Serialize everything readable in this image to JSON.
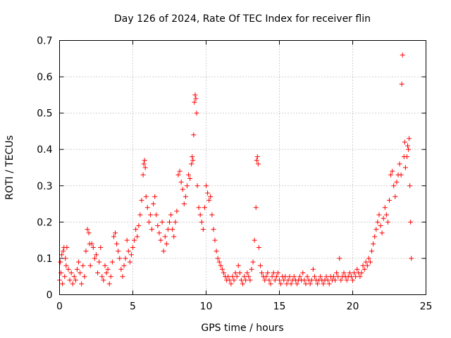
{
  "chart_data": {
    "type": "scatter",
    "title": "Day 126 of 2024, Rate Of TEC Index for receiver flin",
    "xlabel": "GPS time / hours",
    "ylabel": "ROTI / TECUs",
    "xlim": [
      0,
      25
    ],
    "ylim": [
      0,
      0.7
    ],
    "xticks": [
      "0",
      "5",
      "10",
      "15",
      "20",
      "25"
    ],
    "yticks": [
      "0",
      "0.1",
      "0.2",
      "0.3",
      "0.4",
      "0.5",
      "0.6",
      "0.7"
    ],
    "grid": true,
    "marker": "+",
    "marker_color": "#ff0000",
    "series": [
      {
        "points": [
          [
            0.0,
            0.04
          ],
          [
            0.05,
            0.09
          ],
          [
            0.1,
            0.06
          ],
          [
            0.15,
            0.11
          ],
          [
            0.2,
            0.03
          ],
          [
            0.25,
            0.12
          ],
          [
            0.3,
            0.13
          ],
          [
            0.35,
            0.05
          ],
          [
            0.4,
            0.1
          ],
          [
            0.45,
            0.08
          ],
          [
            0.5,
            0.13
          ],
          [
            0.6,
            0.07
          ],
          [
            0.7,
            0.04
          ],
          [
            0.8,
            0.06
          ],
          [
            0.9,
            0.03
          ],
          [
            1.0,
            0.05
          ],
          [
            1.1,
            0.04
          ],
          [
            1.2,
            0.07
          ],
          [
            1.3,
            0.09
          ],
          [
            1.4,
            0.06
          ],
          [
            1.5,
            0.03
          ],
          [
            1.6,
            0.08
          ],
          [
            1.7,
            0.05
          ],
          [
            1.8,
            0.12
          ],
          [
            1.9,
            0.18
          ],
          [
            2.0,
            0.17
          ],
          [
            2.05,
            0.14
          ],
          [
            2.1,
            0.08
          ],
          [
            2.2,
            0.14
          ],
          [
            2.3,
            0.13
          ],
          [
            2.4,
            0.1
          ],
          [
            2.5,
            0.11
          ],
          [
            2.6,
            0.06
          ],
          [
            2.7,
            0.09
          ],
          [
            2.8,
            0.13
          ],
          [
            2.9,
            0.05
          ],
          [
            3.0,
            0.04
          ],
          [
            3.1,
            0.08
          ],
          [
            3.2,
            0.06
          ],
          [
            3.3,
            0.07
          ],
          [
            3.4,
            0.03
          ],
          [
            3.5,
            0.05
          ],
          [
            3.6,
            0.09
          ],
          [
            3.7,
            0.16
          ],
          [
            3.8,
            0.17
          ],
          [
            3.9,
            0.14
          ],
          [
            4.0,
            0.12
          ],
          [
            4.1,
            0.1
          ],
          [
            4.2,
            0.07
          ],
          [
            4.3,
            0.05
          ],
          [
            4.4,
            0.08
          ],
          [
            4.5,
            0.1
          ],
          [
            4.6,
            0.15
          ],
          [
            4.7,
            0.12
          ],
          [
            4.8,
            0.09
          ],
          [
            4.9,
            0.11
          ],
          [
            5.0,
            0.13
          ],
          [
            5.1,
            0.15
          ],
          [
            5.2,
            0.18
          ],
          [
            5.3,
            0.16
          ],
          [
            5.4,
            0.19
          ],
          [
            5.5,
            0.22
          ],
          [
            5.6,
            0.26
          ],
          [
            5.7,
            0.33
          ],
          [
            5.75,
            0.36
          ],
          [
            5.8,
            0.37
          ],
          [
            5.85,
            0.35
          ],
          [
            5.9,
            0.27
          ],
          [
            6.0,
            0.24
          ],
          [
            6.1,
            0.2
          ],
          [
            6.2,
            0.22
          ],
          [
            6.3,
            0.18
          ],
          [
            6.4,
            0.25
          ],
          [
            6.5,
            0.27
          ],
          [
            6.6,
            0.22
          ],
          [
            6.7,
            0.19
          ],
          [
            6.8,
            0.17
          ],
          [
            6.9,
            0.15
          ],
          [
            7.0,
            0.2
          ],
          [
            7.1,
            0.12
          ],
          [
            7.2,
            0.16
          ],
          [
            7.3,
            0.14
          ],
          [
            7.4,
            0.18
          ],
          [
            7.5,
            0.2
          ],
          [
            7.6,
            0.22
          ],
          [
            7.7,
            0.18
          ],
          [
            7.8,
            0.16
          ],
          [
            7.9,
            0.2
          ],
          [
            8.0,
            0.23
          ],
          [
            8.1,
            0.33
          ],
          [
            8.2,
            0.34
          ],
          [
            8.3,
            0.31
          ],
          [
            8.4,
            0.29
          ],
          [
            8.5,
            0.25
          ],
          [
            8.6,
            0.27
          ],
          [
            8.7,
            0.3
          ],
          [
            8.8,
            0.33
          ],
          [
            8.9,
            0.32
          ],
          [
            9.0,
            0.36
          ],
          [
            9.05,
            0.38
          ],
          [
            9.1,
            0.37
          ],
          [
            9.15,
            0.44
          ],
          [
            9.2,
            0.53
          ],
          [
            9.25,
            0.55
          ],
          [
            9.3,
            0.54
          ],
          [
            9.35,
            0.5
          ],
          [
            9.4,
            0.3
          ],
          [
            9.5,
            0.24
          ],
          [
            9.6,
            0.22
          ],
          [
            9.7,
            0.2
          ],
          [
            9.8,
            0.18
          ],
          [
            9.9,
            0.24
          ],
          [
            10.0,
            0.3
          ],
          [
            10.1,
            0.28
          ],
          [
            10.2,
            0.26
          ],
          [
            10.3,
            0.27
          ],
          [
            10.4,
            0.22
          ],
          [
            10.5,
            0.18
          ],
          [
            10.6,
            0.15
          ],
          [
            10.7,
            0.12
          ],
          [
            10.8,
            0.1
          ],
          [
            10.9,
            0.09
          ],
          [
            11.0,
            0.08
          ],
          [
            11.1,
            0.07
          ],
          [
            11.2,
            0.06
          ],
          [
            11.3,
            0.05
          ],
          [
            11.4,
            0.04
          ],
          [
            11.5,
            0.05
          ],
          [
            11.6,
            0.04
          ],
          [
            11.7,
            0.03
          ],
          [
            11.8,
            0.05
          ],
          [
            11.9,
            0.04
          ],
          [
            12.0,
            0.06
          ],
          [
            12.1,
            0.05
          ],
          [
            12.2,
            0.08
          ],
          [
            12.3,
            0.06
          ],
          [
            12.4,
            0.04
          ],
          [
            12.5,
            0.03
          ],
          [
            12.6,
            0.05
          ],
          [
            12.7,
            0.04
          ],
          [
            12.8,
            0.06
          ],
          [
            12.9,
            0.05
          ],
          [
            13.0,
            0.04
          ],
          [
            13.1,
            0.07
          ],
          [
            13.2,
            0.09
          ],
          [
            13.3,
            0.15
          ],
          [
            13.4,
            0.24
          ],
          [
            13.45,
            0.37
          ],
          [
            13.5,
            0.38
          ],
          [
            13.55,
            0.36
          ],
          [
            13.6,
            0.13
          ],
          [
            13.7,
            0.08
          ],
          [
            13.8,
            0.06
          ],
          [
            13.9,
            0.05
          ],
          [
            14.0,
            0.04
          ],
          [
            14.1,
            0.05
          ],
          [
            14.2,
            0.06
          ],
          [
            14.3,
            0.04
          ],
          [
            14.4,
            0.03
          ],
          [
            14.5,
            0.05
          ],
          [
            14.6,
            0.06
          ],
          [
            14.7,
            0.04
          ],
          [
            14.8,
            0.05
          ],
          [
            14.9,
            0.06
          ],
          [
            15.0,
            0.04
          ],
          [
            15.1,
            0.03
          ],
          [
            15.2,
            0.05
          ],
          [
            15.3,
            0.04
          ],
          [
            15.4,
            0.05
          ],
          [
            15.5,
            0.03
          ],
          [
            15.6,
            0.04
          ],
          [
            15.7,
            0.05
          ],
          [
            15.8,
            0.03
          ],
          [
            15.9,
            0.04
          ],
          [
            16.0,
            0.05
          ],
          [
            16.1,
            0.04
          ],
          [
            16.2,
            0.03
          ],
          [
            16.3,
            0.04
          ],
          [
            16.4,
            0.05
          ],
          [
            16.5,
            0.04
          ],
          [
            16.6,
            0.06
          ],
          [
            16.7,
            0.04
          ],
          [
            16.8,
            0.03
          ],
          [
            16.9,
            0.05
          ],
          [
            17.0,
            0.04
          ],
          [
            17.1,
            0.03
          ],
          [
            17.2,
            0.04
          ],
          [
            17.3,
            0.07
          ],
          [
            17.4,
            0.05
          ],
          [
            17.5,
            0.04
          ],
          [
            17.6,
            0.03
          ],
          [
            17.7,
            0.04
          ],
          [
            17.8,
            0.05
          ],
          [
            17.9,
            0.04
          ],
          [
            18.0,
            0.03
          ],
          [
            18.1,
            0.04
          ],
          [
            18.2,
            0.05
          ],
          [
            18.3,
            0.04
          ],
          [
            18.4,
            0.03
          ],
          [
            18.5,
            0.05
          ],
          [
            18.6,
            0.04
          ],
          [
            18.7,
            0.05
          ],
          [
            18.8,
            0.04
          ],
          [
            18.9,
            0.06
          ],
          [
            19.0,
            0.05
          ],
          [
            19.1,
            0.1
          ],
          [
            19.2,
            0.04
          ],
          [
            19.3,
            0.05
          ],
          [
            19.4,
            0.06
          ],
          [
            19.5,
            0.05
          ],
          [
            19.6,
            0.04
          ],
          [
            19.7,
            0.05
          ],
          [
            19.8,
            0.06
          ],
          [
            19.9,
            0.05
          ],
          [
            20.0,
            0.04
          ],
          [
            20.1,
            0.06
          ],
          [
            20.2,
            0.05
          ],
          [
            20.3,
            0.07
          ],
          [
            20.4,
            0.06
          ],
          [
            20.5,
            0.05
          ],
          [
            20.6,
            0.06
          ],
          [
            20.7,
            0.08
          ],
          [
            20.8,
            0.07
          ],
          [
            20.9,
            0.09
          ],
          [
            21.0,
            0.08
          ],
          [
            21.1,
            0.1
          ],
          [
            21.2,
            0.09
          ],
          [
            21.3,
            0.12
          ],
          [
            21.4,
            0.14
          ],
          [
            21.5,
            0.16
          ],
          [
            21.6,
            0.18
          ],
          [
            21.7,
            0.2
          ],
          [
            21.8,
            0.22
          ],
          [
            21.9,
            0.19
          ],
          [
            22.0,
            0.17
          ],
          [
            22.1,
            0.21
          ],
          [
            22.2,
            0.24
          ],
          [
            22.3,
            0.22
          ],
          [
            22.4,
            0.2
          ],
          [
            22.5,
            0.26
          ],
          [
            22.6,
            0.33
          ],
          [
            22.7,
            0.34
          ],
          [
            22.8,
            0.3
          ],
          [
            22.9,
            0.27
          ],
          [
            23.0,
            0.31
          ],
          [
            23.1,
            0.33
          ],
          [
            23.2,
            0.36
          ],
          [
            23.3,
            0.33
          ],
          [
            23.35,
            0.58
          ],
          [
            23.4,
            0.66
          ],
          [
            23.5,
            0.38
          ],
          [
            23.55,
            0.42
          ],
          [
            23.6,
            0.35
          ],
          [
            23.7,
            0.38
          ],
          [
            23.75,
            0.41
          ],
          [
            23.8,
            0.4
          ],
          [
            23.85,
            0.43
          ],
          [
            23.9,
            0.3
          ],
          [
            23.95,
            0.2
          ],
          [
            24.0,
            0.1
          ]
        ]
      }
    ]
  }
}
